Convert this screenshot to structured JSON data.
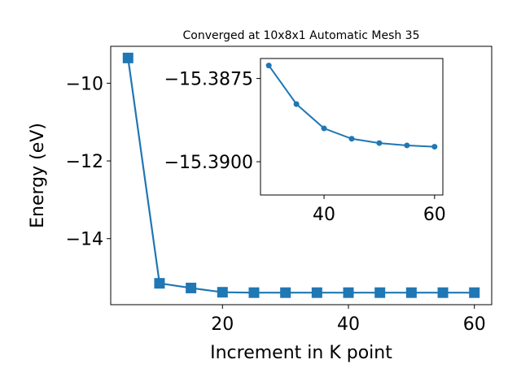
{
  "chart_data": [
    {
      "type": "line",
      "title": "Converged at 10x8x1 Automatic Mesh 35",
      "xlabel": "Increment in K point",
      "ylabel": "Energy (eV)",
      "xlim": [
        2.25,
        62.75
      ],
      "ylim": [
        -15.7,
        -9.05
      ],
      "xticks": [
        20,
        40,
        60
      ],
      "xtick_labels": [
        "20",
        "40",
        "60"
      ],
      "yticks": [
        -10,
        -12,
        -14
      ],
      "ytick_labels": [
        "−10",
        "−12",
        "−14"
      ],
      "grid": false,
      "marker": "square",
      "color": "#1f77b4",
      "series": [
        {
          "x": [
            5,
            10,
            15,
            20,
            25,
            30,
            35,
            40,
            45,
            50,
            55,
            60
          ],
          "y": [
            -9.35,
            -15.15,
            -15.27,
            -15.38,
            -15.39,
            -15.39,
            -15.39,
            -15.39,
            -15.39,
            -15.39,
            -15.39,
            -15.39
          ]
        }
      ]
    },
    {
      "type": "line",
      "inset": true,
      "title": "",
      "xlabel": "",
      "ylabel": "",
      "xlim": [
        28.5,
        61.5
      ],
      "ylim": [
        -15.391,
        -15.3869
      ],
      "xticks": [
        40,
        60
      ],
      "xtick_labels": [
        "40",
        "60"
      ],
      "yticks": [
        -15.39,
        -15.3875
      ],
      "ytick_labels": [
        "−15.3900",
        "−15.3875"
      ],
      "grid": false,
      "marker": "circle",
      "color": "#1f77b4",
      "series": [
        {
          "x": [
            30,
            35,
            40,
            45,
            50,
            55,
            60
          ],
          "y": [
            -15.38711,
            -15.38827,
            -15.389,
            -15.38931,
            -15.38944,
            -15.38951,
            -15.38955
          ]
        }
      ]
    }
  ]
}
